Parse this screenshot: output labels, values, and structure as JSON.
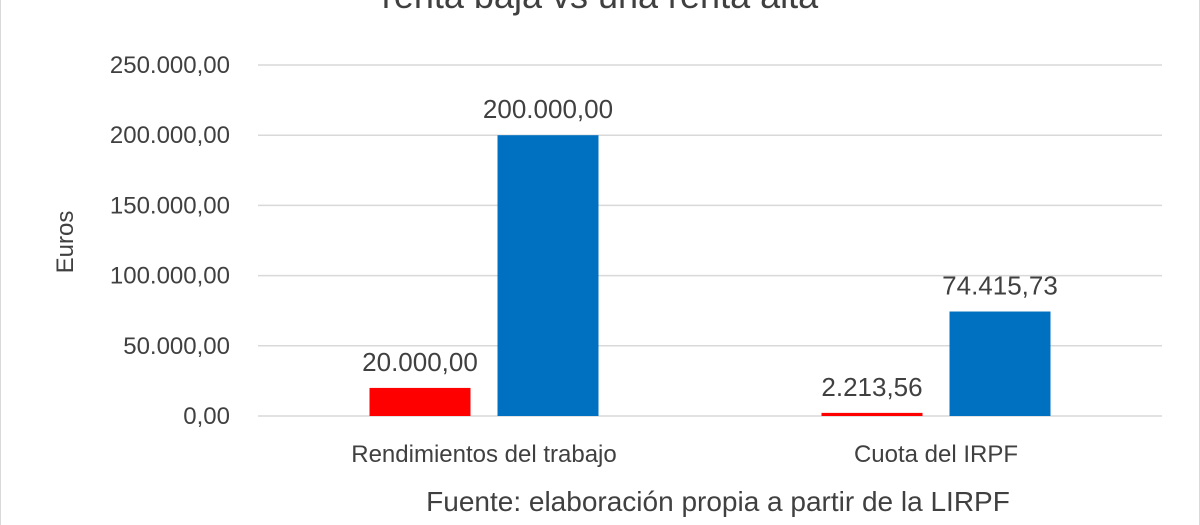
{
  "chart_data": {
    "type": "bar",
    "title": "renta baja vs una renta alta",
    "ylabel": "Euros",
    "xlabel": "",
    "categories": [
      "Rendimientos del trabajo",
      "Cuota del IRPF"
    ],
    "series": [
      {
        "color": "#ff0000",
        "values": [
          20000.0,
          2213.56
        ],
        "data_labels": [
          "20.000,00",
          "2.213,56"
        ]
      },
      {
        "color": "#0070c0",
        "values": [
          200000.0,
          74415.73
        ],
        "data_labels": [
          "200.000,00",
          "74.415,73"
        ]
      }
    ],
    "ylim": [
      0,
      250000
    ],
    "yticks": [
      0,
      50000,
      100000,
      150000,
      200000,
      250000
    ],
    "ytick_labels": [
      "0,00",
      "50.000,00",
      "100.000,00",
      "150.000,00",
      "200.000,00",
      "250.000,00"
    ],
    "grid": true,
    "legend": "none",
    "source_note": "Fuente: elaboración propia a partir de la LIRPF",
    "colors": {
      "text": "#404040",
      "grid": "#d9d9d9"
    }
  }
}
